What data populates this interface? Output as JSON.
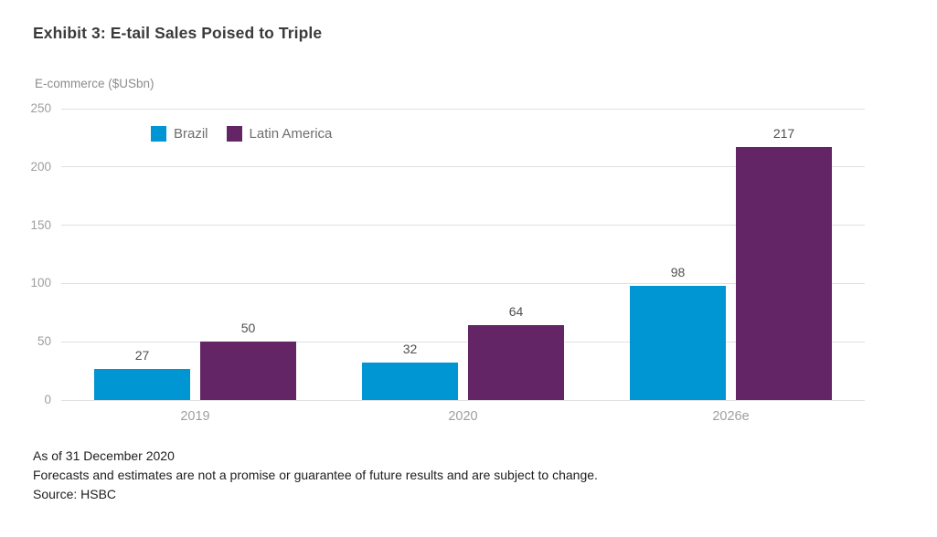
{
  "header": {
    "title": "Exhibit 3: E-tail Sales Poised to Triple"
  },
  "chart_data": {
    "type": "bar",
    "title": "Exhibit 3: E-tail Sales Poised to Triple",
    "ylabel": "E-commerce ($USbn)",
    "xlabel": "",
    "categories": [
      "2019",
      "2020",
      "2026e"
    ],
    "series": [
      {
        "name": "Brazil",
        "color": "#0095d3",
        "values": [
          27,
          32,
          98
        ]
      },
      {
        "name": "Latin America",
        "color": "#632566",
        "values": [
          50,
          64,
          217
        ]
      }
    ],
    "ylim": [
      0,
      250
    ],
    "yticks": [
      0,
      50,
      100,
      150,
      200,
      250
    ],
    "grid": true,
    "legend_position": "top-left-inside",
    "data_labels": true
  },
  "footnotes": {
    "as_of": "As of 31 December 2020",
    "disclaimer": "Forecasts and estimates are not a promise or guarantee of future results and are subject to change.",
    "source": "Source: HSBC"
  }
}
